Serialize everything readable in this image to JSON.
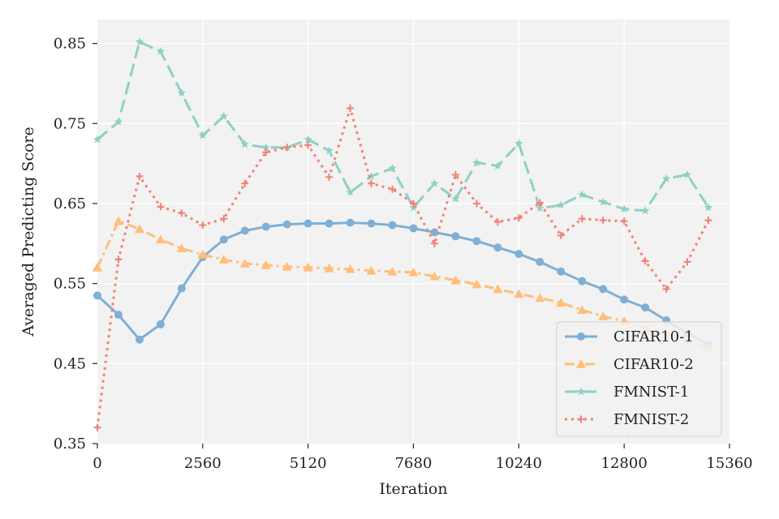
{
  "chart_data": {
    "type": "line",
    "xlabel": "Iteration",
    "ylabel": "Averaged Predicting Score",
    "xlim": [
      0,
      15360
    ],
    "ylim": [
      0.35,
      0.88
    ],
    "xticks": [
      0,
      2560,
      5120,
      7680,
      10240,
      12800,
      15360
    ],
    "xtick_labels": [
      "0",
      "2560",
      "5120",
      "7680",
      "10240",
      "12800",
      "15360"
    ],
    "yticks": [
      0.35,
      0.45,
      0.55,
      0.65,
      0.75,
      0.85
    ],
    "ytick_labels": [
      "0.35",
      "0.45",
      "0.55",
      "0.65",
      "0.75",
      "0.85"
    ],
    "grid": true,
    "legend_position": "bottom-right",
    "x": [
      0,
      512,
      1024,
      1536,
      2048,
      2560,
      3072,
      3584,
      4096,
      4608,
      5120,
      5632,
      6144,
      6656,
      7168,
      7680,
      8192,
      8704,
      9216,
      9728,
      10240,
      10752,
      11264,
      11776,
      12288,
      12800,
      13312,
      13824,
      14336,
      14848
    ],
    "series": [
      {
        "name": "CIFAR10-1",
        "color": "#7fafd4",
        "dash": "solid",
        "marker": "circle",
        "values": [
          0.535,
          0.511,
          0.48,
          0.499,
          0.544,
          0.583,
          0.605,
          0.616,
          0.621,
          0.624,
          0.625,
          0.625,
          0.626,
          0.625,
          0.623,
          0.619,
          0.614,
          0.609,
          0.603,
          0.595,
          0.587,
          0.577,
          0.565,
          0.553,
          0.543,
          0.53,
          0.52,
          0.504,
          0.488,
          0.474
        ]
      },
      {
        "name": "CIFAR10-2",
        "color": "#ffbe7a",
        "dash": "dashdot",
        "marker": "triangle",
        "values": [
          0.57,
          0.628,
          0.618,
          0.605,
          0.594,
          0.586,
          0.58,
          0.575,
          0.573,
          0.571,
          0.57,
          0.569,
          0.568,
          0.566,
          0.565,
          0.564,
          0.559,
          0.554,
          0.549,
          0.543,
          0.537,
          0.532,
          0.526,
          0.517,
          0.509,
          0.503,
          0.494,
          0.486,
          0.478,
          0.47
        ]
      },
      {
        "name": "FMNIST-1",
        "color": "#8ed0c6",
        "dash": "dashed",
        "marker": "star",
        "values": [
          0.73,
          0.752,
          0.852,
          0.84,
          0.788,
          0.735,
          0.759,
          0.724,
          0.72,
          0.72,
          0.73,
          0.716,
          0.664,
          0.684,
          0.694,
          0.645,
          0.675,
          0.656,
          0.701,
          0.697,
          0.725,
          0.644,
          0.648,
          0.661,
          0.652,
          0.643,
          0.641,
          0.681,
          0.686,
          0.645
        ]
      },
      {
        "name": "FMNIST-2",
        "color": "#f28174",
        "dash": "dotted",
        "marker": "plus",
        "values": [
          0.37,
          0.58,
          0.684,
          0.646,
          0.638,
          0.623,
          0.631,
          0.675,
          0.714,
          0.72,
          0.723,
          0.683,
          0.769,
          0.675,
          0.668,
          0.65,
          0.6,
          0.686,
          0.65,
          0.627,
          0.632,
          0.651,
          0.61,
          0.631,
          0.629,
          0.628,
          0.578,
          0.543,
          0.577,
          0.629
        ]
      }
    ]
  }
}
